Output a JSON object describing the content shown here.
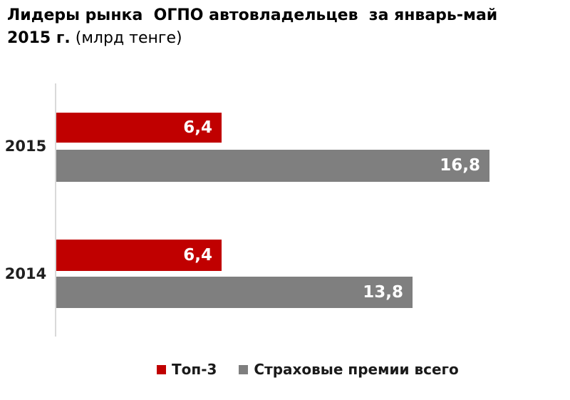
{
  "title": {
    "line1": "Лидеры рынка  ОГПО автовладельцев  за январь-май",
    "line2_bold": "2015 г.",
    "line2_normal": " (млрд тенге)"
  },
  "chart_data": {
    "type": "bar",
    "orientation": "horizontal",
    "title": "Лидеры рынка ОГПО автовладельцев за январь-май 2015 г. (млрд тенге)",
    "categories": [
      "2015",
      "2014"
    ],
    "series": [
      {
        "name": "Топ-3",
        "color": "#c00000",
        "values": [
          6.4,
          6.4
        ],
        "labels": [
          "6,4",
          "6,4"
        ]
      },
      {
        "name": "Страховые премии всего",
        "color": "#7f7f7f",
        "values": [
          16.8,
          13.8
        ],
        "labels": [
          "16,8",
          "13,8"
        ]
      }
    ],
    "xlim": [
      0,
      18
    ],
    "grid": false,
    "axis_line_color": "#d9d9d9",
    "value_label_color": "#ffffff",
    "legend_position": "bottom"
  },
  "legend": {
    "items": [
      {
        "label": "Топ-3",
        "color": "#c00000"
      },
      {
        "label": "Страховые премии всего",
        "color": "#7f7f7f"
      }
    ]
  }
}
